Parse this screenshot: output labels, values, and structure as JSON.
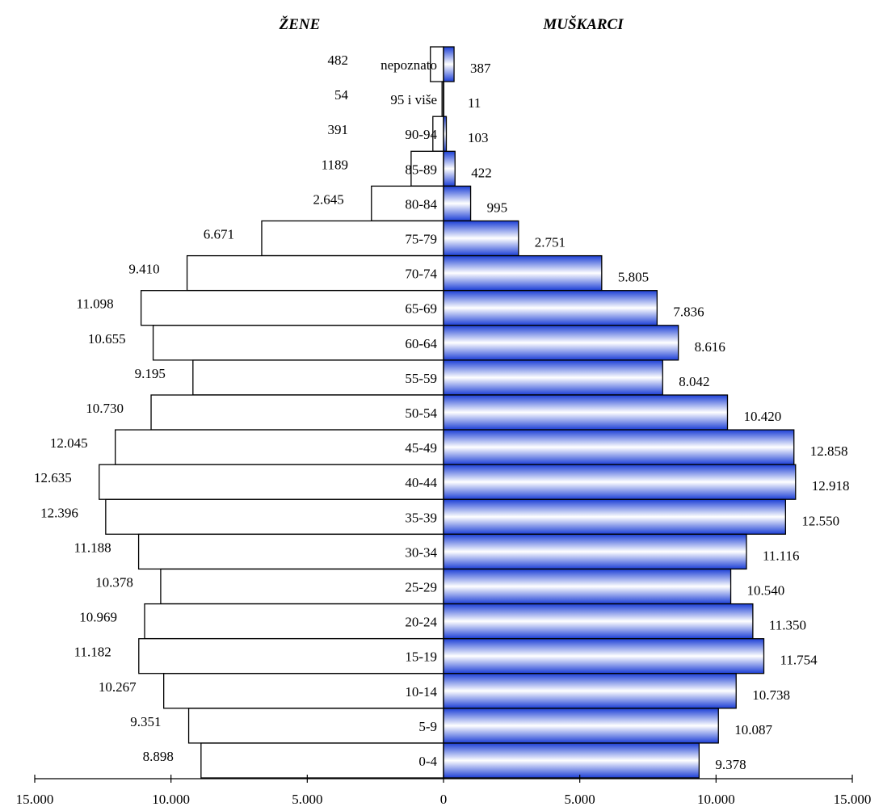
{
  "chart_data": {
    "type": "bar",
    "title": "",
    "xlabel": "",
    "ylabel": "",
    "xlim": [
      -15000,
      15000
    ],
    "left_header": "ŽENE",
    "right_header": "MUŠKARCI",
    "categories": [
      "nepoznato",
      "95 i više",
      "90-94",
      "85-89",
      "80-84",
      "75-79",
      "70-74",
      "65-69",
      "60-64",
      "55-59",
      "50-54",
      "45-49",
      "40-44",
      "35-39",
      "30-34",
      "25-29",
      "20-24",
      "15-19",
      "10-14",
      "5-9",
      "0-4"
    ],
    "series": [
      {
        "name": "",
        "side": "left",
        "values": [
          482,
          54,
          391,
          1189,
          2645,
          6671,
          9410,
          11098,
          10655,
          9195,
          10730,
          12045,
          12635,
          12396,
          11188,
          10378,
          10969,
          11182,
          10267,
          9351,
          8898
        ],
        "labels": [
          "482",
          "54",
          "391",
          "1189",
          "2.645",
          "6.671",
          "9.410",
          "11.098",
          "10.655",
          "9.195",
          "10.730",
          "12.045",
          "12.635",
          "12.396",
          "11.188",
          "10.378",
          "10.969",
          "11.182",
          "10.267",
          "9.351",
          "8.898"
        ]
      },
      {
        "name": "",
        "side": "right",
        "values": [
          387,
          11,
          103,
          422,
          995,
          2751,
          5805,
          7836,
          8616,
          8042,
          10420,
          12858,
          12918,
          12550,
          11116,
          10540,
          11350,
          11754,
          10738,
          10087,
          9378
        ],
        "labels": [
          "387",
          "11",
          "103",
          "422",
          "995",
          "2.751",
          "5.805",
          "7.836",
          "8.616",
          "8.042",
          "10.420",
          "12.858",
          "12.918",
          "12.550",
          "11.116",
          "10.540",
          "11.350",
          "11.754",
          "10.738",
          "10.087",
          "9.378"
        ]
      }
    ],
    "x_ticks": [
      "15.000",
      "10.000",
      "5.000",
      "0",
      "5.000",
      "10.000",
      "15.000"
    ],
    "colors": {
      "right_fill_edge": "#1c3fd6",
      "right_fill_mid": "#ffffff",
      "left_fill": "#ffffff",
      "stroke": "#000000"
    }
  }
}
